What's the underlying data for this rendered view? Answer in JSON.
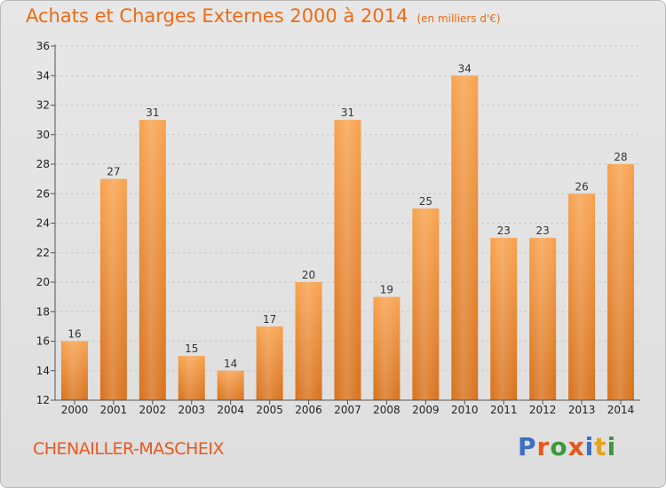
{
  "title": "Achats et Charges Externes 2000 à 2014",
  "title_unit": "(en milliers d'€)",
  "commune": "CHENAILLER-MASCHEIX",
  "brand": {
    "text": "Proxiti",
    "letter_colors": [
      "#3b6fc4",
      "#e8561b",
      "#3b9a3c",
      "#e8561b",
      "#3b6fc4",
      "#e8a21b",
      "#3b9a3c"
    ]
  },
  "colors": {
    "bar_light": "#f8a24e",
    "bar_dark": "#d7721d",
    "title": "#f06a12",
    "axis": "#555555",
    "grid": "#c9c9c9"
  },
  "chart_data": {
    "type": "bar",
    "title": "Achats et Charges Externes 2000 à 2014",
    "subtitle": "(en milliers d'€)",
    "categories": [
      "2000",
      "2001",
      "2002",
      "2003",
      "2004",
      "2005",
      "2006",
      "2007",
      "2008",
      "2009",
      "2010",
      "2011",
      "2012",
      "2013",
      "2014"
    ],
    "values": [
      16,
      27,
      31,
      15,
      14,
      17,
      20,
      31,
      19,
      25,
      34,
      23,
      23,
      26,
      28
    ],
    "ylim": [
      12,
      36
    ],
    "yticks": [
      12,
      14,
      16,
      18,
      20,
      22,
      24,
      26,
      28,
      30,
      32,
      34,
      36
    ],
    "grid": true,
    "xlabel": "",
    "ylabel": ""
  }
}
